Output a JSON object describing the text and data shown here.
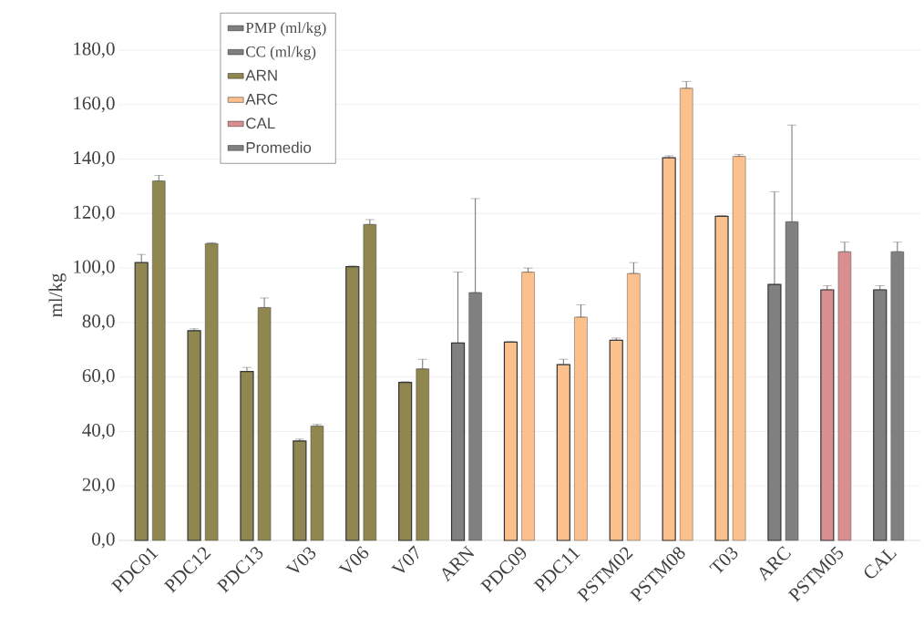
{
  "chart_data": {
    "type": "bar",
    "ylabel": "ml/kg",
    "categories": [
      "PDC01",
      "PDC12",
      "PDC13",
      "V03",
      "V06",
      "V07",
      "ARN",
      "PDC09",
      "PDC11",
      "PSTM02",
      "PSTM08",
      "T03",
      "ARC",
      "PSTM05",
      "CAL"
    ],
    "series": [
      {
        "name": "PMP (ml/kg)",
        "color": "#7f7f7f",
        "colors": [
          "#8f8650",
          "#8f8650",
          "#8f8650",
          "#8f8650",
          "#8f8650",
          "#8f8650",
          "#808080",
          "#fcc08c",
          "#fcc08c",
          "#fcc08c",
          "#fcc08c",
          "#fcc08c",
          "#808080",
          "#d98f8f",
          "#808080"
        ],
        "values": [
          102,
          77,
          62,
          36.5,
          100.5,
          58,
          72.5,
          72.8,
          64.5,
          73.5,
          140.5,
          119,
          94,
          92,
          92
        ],
        "errors": [
          [
            102,
            105
          ],
          [
            77,
            77.7
          ],
          [
            62,
            63.5
          ],
          [
            36.5,
            37.2
          ],
          [
            100.5,
            100.8
          ],
          [
            58,
            58.3
          ],
          [
            72.5,
            98.5
          ],
          [
            72.8,
            73
          ],
          [
            64.5,
            66.5
          ],
          [
            73.5,
            74.3
          ],
          [
            140.5,
            141.2
          ],
          [
            119,
            119.3
          ],
          [
            94,
            128
          ],
          [
            92,
            93.5
          ],
          [
            92,
            93.5
          ]
        ]
      },
      {
        "name": "CC (ml/kg)",
        "color": "#808080",
        "colors": [
          "#8f8650",
          "#8f8650",
          "#8f8650",
          "#8f8650",
          "#8f8650",
          "#8f8650",
          "#808080",
          "#fcc08c",
          "#fcc08c",
          "#fcc08c",
          "#fcc08c",
          "#fcc08c",
          "#808080",
          "#d98f8f",
          "#808080"
        ],
        "values": [
          132,
          109,
          85.5,
          42,
          116,
          63,
          91,
          98.5,
          82,
          98,
          166,
          141,
          117,
          106,
          106
        ],
        "errors": [
          [
            132,
            134
          ],
          [
            109,
            109.3
          ],
          [
            85.5,
            89
          ],
          [
            42,
            42.6
          ],
          [
            116,
            117.8
          ],
          [
            63,
            66.5
          ],
          [
            91,
            125.5
          ],
          [
            98.5,
            100
          ],
          [
            82,
            86.5
          ],
          [
            98,
            102
          ],
          [
            166,
            168.5
          ],
          [
            141,
            141.7
          ],
          [
            117,
            152.5
          ],
          [
            106,
            109.5
          ],
          [
            106,
            109.5
          ]
        ]
      },
      {
        "name": "ARN",
        "color": "#8f8650",
        "values": [
          null,
          null,
          null,
          null,
          null,
          null,
          null,
          null,
          null,
          null,
          null,
          null,
          null,
          null,
          null
        ]
      },
      {
        "name": "ARC",
        "color": "#fcc08c",
        "values": [
          null,
          null,
          null,
          null,
          null,
          null,
          null,
          null,
          null,
          null,
          null,
          null,
          null,
          null,
          null
        ]
      },
      {
        "name": "CAL",
        "color": "#d98f8f",
        "values": [
          null,
          null,
          null,
          null,
          null,
          null,
          null,
          null,
          null,
          null,
          null,
          null,
          null,
          null,
          null
        ]
      },
      {
        "name": "Promedio",
        "color": "#808080",
        "values": [
          null,
          null,
          null,
          null,
          null,
          null,
          null,
          null,
          null,
          null,
          null,
          null,
          null,
          null,
          null
        ]
      }
    ],
    "ylim": [
      0,
      180
    ],
    "yticks": [
      {
        "value": 0,
        "label": "0,0"
      },
      {
        "value": 20,
        "label": "20,0"
      },
      {
        "value": 40,
        "label": "40,0"
      },
      {
        "value": 60,
        "label": "60,0"
      },
      {
        "value": 80,
        "label": "80,0"
      },
      {
        "value": 100,
        "label": "100,0"
      },
      {
        "value": 120,
        "label": "120,0"
      },
      {
        "value": 140,
        "label": "140,0"
      },
      {
        "value": 160,
        "label": "160,0"
      },
      {
        "value": 180,
        "label": "180,0"
      }
    ],
    "grid": "y",
    "legend": "top left"
  }
}
